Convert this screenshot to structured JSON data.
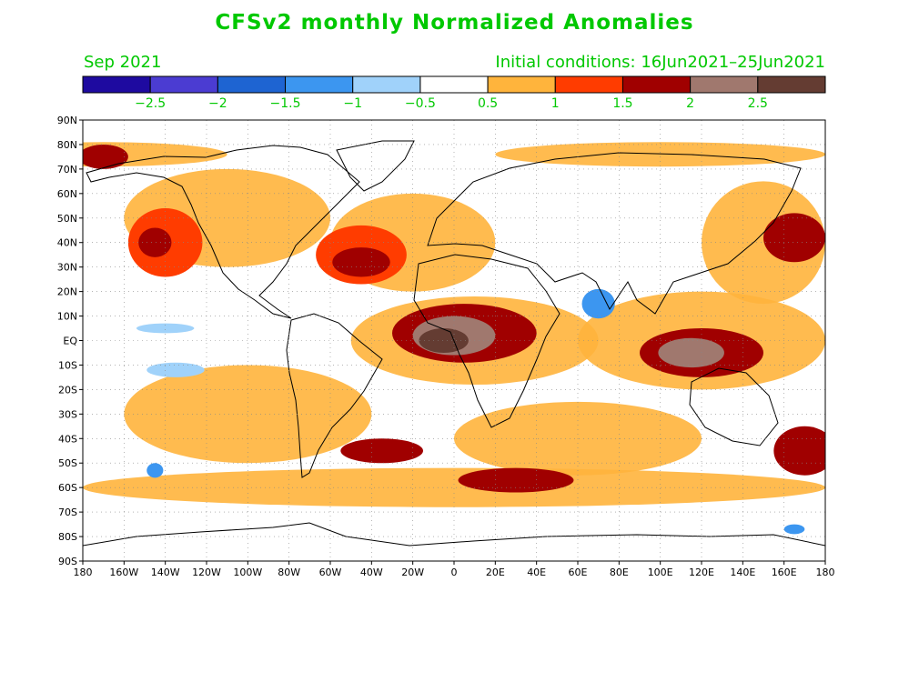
{
  "title": "CFSv2 monthly Normalized Anomalies",
  "valid_month": "Sep 2021",
  "initial_conditions": "Initial conditions: 16Jun2021–25Jun2021",
  "colorbar": {
    "colors": [
      "#1e0aa0",
      "#4b3cd2",
      "#1e64d2",
      "#3c96f0",
      "#a0d2fa",
      "#ffffff",
      "#ffb43c",
      "#ff3c00",
      "#a00000",
      "#a0786e",
      "#643c32"
    ],
    "labels": [
      "−2.5",
      "−2",
      "−1.5",
      "−1",
      "−0.5",
      "0.5",
      "1",
      "1.5",
      "2",
      "2.5"
    ]
  },
  "lat_labels": [
    "90N",
    "80N",
    "70N",
    "60N",
    "50N",
    "40N",
    "30N",
    "20N",
    "10N",
    "EQ",
    "10S",
    "20S",
    "30S",
    "40S",
    "50S",
    "60S",
    "70S",
    "80S",
    "90S"
  ],
  "lon_labels": [
    "180",
    "160W",
    "140W",
    "120W",
    "100W",
    "80W",
    "60W",
    "40W",
    "20W",
    "0",
    "20E",
    "40E",
    "60E",
    "80E",
    "100E",
    "120E",
    "140E",
    "160E",
    "180"
  ],
  "label_color": "#00c800",
  "anomaly_regions": [
    {
      "name": "arctic-band",
      "lon": -170,
      "lat": 75,
      "rx": 12,
      "ry": 5,
      "level": 1
    },
    {
      "name": "ne-pacific",
      "lon": -140,
      "lat": 40,
      "rx": 18,
      "ry": 14,
      "level": 0
    },
    {
      "name": "ne-pacific-core",
      "lon": -145,
      "lat": 40,
      "rx": 8,
      "ry": 6,
      "level": 1
    },
    {
      "name": "n-atlantic",
      "lon": -45,
      "lat": 35,
      "rx": 22,
      "ry": 12,
      "level": 0
    },
    {
      "name": "n-atlantic-core",
      "lon": -45,
      "lat": 32,
      "rx": 14,
      "ry": 6,
      "level": 1
    },
    {
      "name": "trop-atlantic-africa",
      "lon": 5,
      "lat": 3,
      "rx": 35,
      "ry": 12,
      "level": 1
    },
    {
      "name": "africa-core",
      "lon": 0,
      "lat": 2,
      "rx": 20,
      "ry": 8,
      "level": 2
    },
    {
      "name": "africa-peak",
      "lon": -5,
      "lat": 0,
      "rx": 12,
      "ry": 5,
      "level": 3
    },
    {
      "name": "maritime-continent",
      "lon": 120,
      "lat": -5,
      "rx": 30,
      "ry": 10,
      "level": 1
    },
    {
      "name": "maritime-core",
      "lon": 115,
      "lat": -5,
      "rx": 16,
      "ry": 6,
      "level": 2
    },
    {
      "name": "nw-pacific",
      "lon": 165,
      "lat": 42,
      "rx": 15,
      "ry": 10,
      "level": 1
    },
    {
      "name": "s-atlantic-40s",
      "lon": -35,
      "lat": -45,
      "rx": 20,
      "ry": 5,
      "level": 1
    },
    {
      "name": "s-indian-55s",
      "lon": 30,
      "lat": -57,
      "rx": 28,
      "ry": 5,
      "level": 1
    },
    {
      "name": "sw-pacific-45s",
      "lon": 170,
      "lat": -45,
      "rx": 15,
      "ry": 10,
      "level": 1
    }
  ],
  "negative_regions": [
    {
      "name": "s-pacific-10s",
      "lon": -135,
      "lat": -12,
      "rx": 14,
      "ry": 3,
      "level": 4
    },
    {
      "name": "e-pacific-5n",
      "lon": -140,
      "lat": 5,
      "rx": 14,
      "ry": 2,
      "level": 4
    },
    {
      "name": "india-arabian",
      "lon": 70,
      "lat": 15,
      "rx": 8,
      "ry": 6,
      "level": 3
    },
    {
      "name": "s-pacific-50s",
      "lon": -145,
      "lat": -53,
      "rx": 4,
      "ry": 3,
      "level": 3
    },
    {
      "name": "antarctic-ross",
      "lon": 165,
      "lat": -77,
      "rx": 5,
      "ry": 2,
      "level": 3
    }
  ]
}
